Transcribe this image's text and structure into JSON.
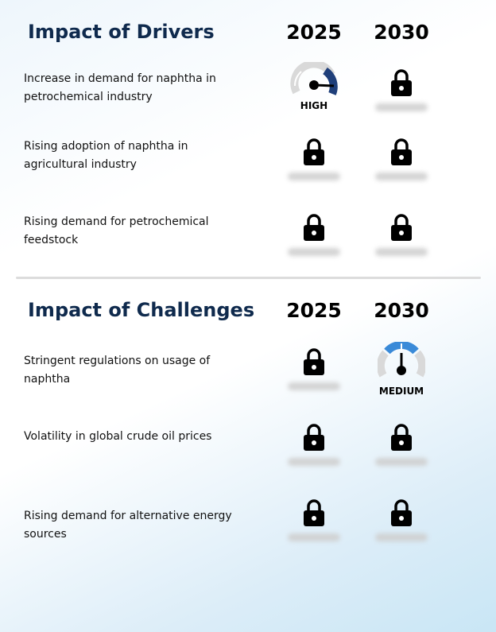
{
  "drivers": {
    "title": "Impact of Drivers",
    "years": [
      "2025",
      "2030"
    ],
    "rows": [
      {
        "label": "Increase in demand for naphtha in petrochemical industry",
        "y2025": {
          "type": "gauge",
          "level": "HIGH"
        },
        "y2030": {
          "type": "lock"
        }
      },
      {
        "label": "Rising adoption of naphtha in agricultural industry",
        "y2025": {
          "type": "lock"
        },
        "y2030": {
          "type": "lock"
        }
      },
      {
        "label": "Rising demand for petrochemical feedstock",
        "y2025": {
          "type": "lock"
        },
        "y2030": {
          "type": "lock"
        }
      }
    ]
  },
  "challenges": {
    "title": "Impact of Challenges",
    "years": [
      "2025",
      "2030"
    ],
    "rows": [
      {
        "label": "Stringent regulations on usage of naphtha",
        "y2025": {
          "type": "lock"
        },
        "y2030": {
          "type": "gauge",
          "level": "MEDIUM"
        }
      },
      {
        "label": "Volatility in global crude oil prices",
        "y2025": {
          "type": "lock"
        },
        "y2030": {
          "type": "lock"
        }
      },
      {
        "label": "Rising demand for alternative energy sources",
        "y2025": {
          "type": "lock"
        },
        "y2030": {
          "type": "lock"
        }
      }
    ]
  },
  "colors": {
    "title": "#0f2a4d",
    "gauge_high": "#1f3f7a",
    "gauge_medium": "#3a8ad8",
    "gauge_track": "#d9d9d9"
  },
  "icons": {
    "locked": "lock-icon",
    "impact": "gauge-icon"
  }
}
